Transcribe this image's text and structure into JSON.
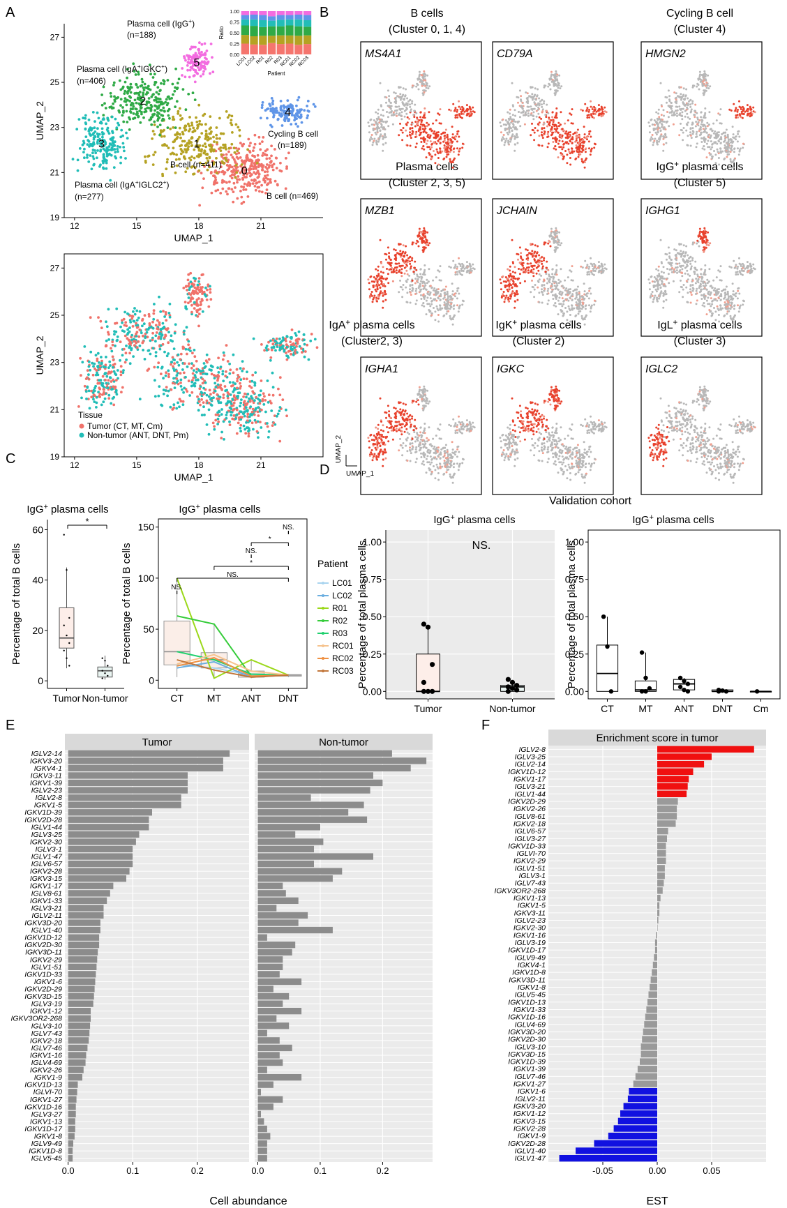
{
  "panel_letters": [
    "A",
    "B",
    "C",
    "D",
    "E",
    "F"
  ],
  "chart_data": [
    {
      "id": "A_top",
      "type": "scatter",
      "xlabel": "UMAP_1",
      "ylabel": "UMAP_2",
      "xticks": [
        12,
        15,
        18,
        21
      ],
      "yticks": [
        19,
        21,
        23,
        25,
        27
      ],
      "xlim": [
        11.5,
        24
      ],
      "ylim": [
        19,
        27.6
      ],
      "clusters": [
        {
          "id": "0",
          "color": "#f0726a",
          "label": "B cell (n=469)",
          "center": [
            20.2,
            21.1
          ],
          "spread": [
            1.3,
            0.9
          ]
        },
        {
          "id": "1",
          "color": "#b5a223",
          "label": "B cell (n=411)",
          "center": [
            17.9,
            22.3
          ],
          "spread": [
            1.6,
            1.0
          ]
        },
        {
          "id": "2",
          "color": "#2faa46",
          "label_lines": [
            "Plasma cell (IgA",
            "+",
            "IGKC",
            "+",
            ")"
          ],
          "label": "Plasma cell (IgA+IGKC+) (n=406)",
          "n_text": "(n=406)",
          "center": [
            15.3,
            24.2
          ],
          "spread": [
            1.4,
            0.9
          ]
        },
        {
          "id": "3",
          "color": "#21bdb7",
          "label": "Plasma cell (IgA+IGLC2+) (n=277)",
          "n_text": "(n=277)",
          "center": [
            13.3,
            22.3
          ],
          "spread": [
            0.8,
            0.9
          ]
        },
        {
          "id": "4",
          "color": "#5f95e8",
          "label": "Cycling B cell (n=189)",
          "n_text": "(n=189)",
          "center": [
            22.3,
            23.7
          ],
          "spread": [
            0.9,
            0.4
          ]
        },
        {
          "id": "5",
          "color": "#f36ce0",
          "label": "Plasma cell (IgG+) (n=188)",
          "n_text": "(n=188)",
          "center": [
            17.9,
            25.9
          ],
          "spread": [
            0.5,
            0.6
          ]
        }
      ],
      "inset": {
        "ylabel": "Ratio",
        "xlabel": "Patient",
        "yticks": [
          "0.00",
          "0.25",
          "0.50",
          "0.75",
          "1.00"
        ],
        "categories": [
          "LC01",
          "LC02",
          "R01",
          "R02",
          "R03",
          "RC01",
          "RC02",
          "RC03"
        ],
        "series": [
          {
            "color": "#f5756e",
            "values": [
              0.25,
              0.23,
              0.22,
              0.26,
              0.24,
              0.25,
              0.22,
              0.24
            ]
          },
          {
            "color": "#b5a223",
            "values": [
              0.2,
              0.19,
              0.21,
              0.17,
              0.2,
              0.19,
              0.21,
              0.2
            ]
          },
          {
            "color": "#2faa46",
            "values": [
              0.22,
              0.24,
              0.2,
              0.22,
              0.21,
              0.23,
              0.22,
              0.2
            ]
          },
          {
            "color": "#22bdb7",
            "values": [
              0.14,
              0.15,
              0.16,
              0.13,
              0.15,
              0.14,
              0.16,
              0.15
            ]
          },
          {
            "color": "#5f95e8",
            "values": [
              0.1,
              0.11,
              0.12,
              0.1,
              0.11,
              0.1,
              0.11,
              0.12
            ]
          },
          {
            "color": "#f36ce0",
            "values": [
              0.09,
              0.08,
              0.09,
              0.12,
              0.09,
              0.09,
              0.08,
              0.09
            ]
          }
        ]
      }
    },
    {
      "id": "A_bottom",
      "type": "scatter",
      "xlabel": "UMAP_1",
      "ylabel": "UMAP_2",
      "xticks": [
        12,
        15,
        18,
        21
      ],
      "yticks": [
        19,
        21,
        23,
        25,
        27
      ],
      "legend_title": "Tissue",
      "legend": [
        {
          "label": "Tumor (CT, MT, Cm)",
          "color": "#f0726a"
        },
        {
          "label": "Non-tumor (ANT, DNT, Pm)",
          "color": "#21bdb7"
        }
      ]
    },
    {
      "id": "B",
      "type": "heatmap",
      "headers": [
        {
          "line1": "B cells",
          "line2": "(Cluster 0, 1, 4)"
        },
        {
          "line1": "Cycling B cell",
          "line2": "(Cluster 4)"
        },
        {
          "line1": "Plasma cells",
          "line2": "(Cluster 2, 3, 5)"
        },
        {
          "line1": "IgG",
          "sup": "+",
          "rest": " plasma cells",
          "line2": "(Cluster 5)"
        },
        {
          "line1": "IgA",
          "sup": "+",
          "rest": " plasma cells",
          "line2": "(Cluster2, 3)"
        },
        {
          "line1": "IgK",
          "sup": "+",
          "rest": " plasma cells",
          "line2": "(Cluster 2)"
        },
        {
          "line1": "IgL",
          "sup": "+",
          "rest": " plasma cells",
          "line2": "(Cluster 3)"
        }
      ],
      "genes": [
        {
          "name": "MS4A1",
          "high": [
            0,
            1,
            4
          ]
        },
        {
          "name": "CD79A",
          "high": [
            0,
            1,
            4
          ]
        },
        {
          "name": "HMGN2",
          "high": [
            4
          ]
        },
        {
          "name": "MZB1",
          "high": [
            2,
            3,
            5
          ]
        },
        {
          "name": "JCHAIN",
          "high": [
            3,
            2
          ]
        },
        {
          "name": "IGHG1",
          "high": [
            5
          ]
        },
        {
          "name": "IGHA1",
          "high": [
            2,
            3
          ]
        },
        {
          "name": "IGKC",
          "high": [
            2,
            5
          ]
        },
        {
          "name": "IGLC2",
          "high": [
            3
          ]
        }
      ],
      "axis_x": "UMAP_1",
      "axis_y": "UMAP_2"
    },
    {
      "id": "C_left",
      "type": "box",
      "title_base": "IgG",
      "title_sup": "+",
      "title_rest": " plasma cells",
      "ylabel": "Percentage of total B cells",
      "categories": [
        "Tumor",
        "Non-tumor"
      ],
      "yticks": [
        0,
        20,
        40,
        60
      ],
      "ylim": [
        -3,
        64
      ],
      "boxes": [
        {
          "q1": 13,
          "median": 17,
          "q3": 29,
          "min": 5,
          "max": 45,
          "points": [
            58,
            44,
            25,
            22,
            18,
            15,
            12,
            9,
            6
          ],
          "fill": "#fdeee9"
        },
        {
          "q1": 1.5,
          "median": 4,
          "q3": 5.5,
          "min": 0.5,
          "max": 10,
          "points": [
            9,
            8,
            6,
            4,
            3,
            2,
            1
          ],
          "fill": "#e9f4f1"
        }
      ],
      "sig": [
        "*"
      ]
    },
    {
      "id": "C_right",
      "type": "box",
      "title_base": "IgG",
      "title_sup": "+",
      "title_rest": " plasma cells",
      "ylabel": "Percentage of total B cells",
      "categories": [
        "CT",
        "MT",
        "ANT",
        "DNT"
      ],
      "yticks": [
        0,
        50,
        100,
        150
      ],
      "ylim": [
        -8,
        158
      ],
      "boxes": [
        {
          "q1": 15,
          "median": 28,
          "q3": 58,
          "min": 3,
          "max": 100
        },
        {
          "q1": 12,
          "median": 20,
          "q3": 27,
          "min": 2,
          "max": 55
        },
        {
          "q1": 3,
          "median": 6,
          "q3": 9,
          "min": 2,
          "max": 20
        },
        {
          "q1": 4,
          "median": 5,
          "q3": 5.5,
          "min": 3,
          "max": 6
        }
      ],
      "legend_title": "Patient",
      "series": [
        {
          "name": "LC01",
          "color": "#a9d4ef",
          "values": [
            15,
            12,
            5,
            5
          ]
        },
        {
          "name": "LC02",
          "color": "#6aaee0",
          "values": [
            12,
            18,
            3,
            5
          ]
        },
        {
          "name": "R01",
          "color": "#9bd81a",
          "values": [
            100,
            2,
            20,
            5
          ]
        },
        {
          "name": "R02",
          "color": "#35cc3a",
          "values": [
            63,
            55,
            4,
            5
          ]
        },
        {
          "name": "R03",
          "color": "#1fd06e",
          "values": [
            28,
            20,
            6,
            5
          ]
        },
        {
          "name": "RC01",
          "color": "#f6c38e",
          "values": [
            16,
            25,
            9,
            5
          ]
        },
        {
          "name": "RC02",
          "color": "#ef9041",
          "values": [
            14,
            22,
            4,
            5
          ]
        },
        {
          "name": "RC03",
          "color": "#c2763a",
          "values": [
            20,
            10,
            3,
            5
          ]
        }
      ],
      "sig": [
        "NS.",
        "*",
        "NS.",
        "*",
        "NS.",
        "NS."
      ]
    },
    {
      "id": "D_left",
      "type": "box",
      "cohort_title": "Validation cohort",
      "title_base": "IgG",
      "title_sup": "+",
      "title_rest": " plasma cells",
      "ylabel": "Percentage of total plasma cells",
      "categories": [
        "Tumor",
        "Non-tumor"
      ],
      "yticks": [
        "0.00",
        "0.25",
        "0.50",
        "0.75",
        "1.00"
      ],
      "ylim": [
        -0.05,
        1.08
      ],
      "ns_label": "NS.",
      "boxes": [
        {
          "q1": 0.0,
          "median": 0.0,
          "q3": 0.25,
          "min": 0,
          "max": 0.44,
          "points": [
            0.45,
            0.43,
            0.18,
            0.06,
            0.0,
            0.0,
            0.0
          ],
          "fill": "#fdeee9"
        },
        {
          "q1": 0.0,
          "median": 0.03,
          "q3": 0.04,
          "min": 0,
          "max": 0.07,
          "points": [
            0.08,
            0.06,
            0.04,
            0.03,
            0.02,
            0.01,
            0.0
          ],
          "fill": "#e9f4f1"
        }
      ]
    },
    {
      "id": "D_right",
      "type": "box",
      "title_base": "IgG",
      "title_sup": "+",
      "title_rest": " plasma cells",
      "ylabel": "Percentage of total plasma cells",
      "categories": [
        "CT",
        "MT",
        "ANT",
        "DNT",
        "Cm"
      ],
      "yticks": [
        "0.00",
        "0.25",
        "0.50",
        "0.75",
        "1.00"
      ],
      "ylim": [
        -0.05,
        1.08
      ],
      "boxes": [
        {
          "q1": 0.0,
          "median": 0.12,
          "q3": 0.31,
          "min": 0,
          "max": 0.5,
          "points": [
            0.5,
            0.3,
            0.0
          ]
        },
        {
          "q1": 0.0,
          "median": 0.01,
          "q3": 0.07,
          "min": 0,
          "max": 0.26,
          "points": [
            0.26,
            0.09,
            0.02,
            0.0,
            0.0
          ]
        },
        {
          "q1": 0.01,
          "median": 0.05,
          "q3": 0.08,
          "min": 0,
          "max": 0.09,
          "points": [
            0.09,
            0.07,
            0.05,
            0.03,
            0.01,
            0.0
          ]
        },
        {
          "q1": 0.0,
          "median": 0.0,
          "q3": 0.01,
          "min": 0,
          "max": 0.01,
          "points": [
            0.01,
            0.005,
            0.0,
            0.0
          ]
        },
        {
          "q1": 0.0,
          "median": 0.0,
          "q3": 0.0,
          "min": 0,
          "max": 0,
          "points": [
            0.0
          ]
        }
      ]
    },
    {
      "id": "E",
      "type": "bar",
      "orientation": "horizontal",
      "facets": [
        "Tumor",
        "Non-tumor"
      ],
      "xlabel": "Cell abundance",
      "xticks": [
        "0.0",
        "0.1",
        "0.2"
      ],
      "xlim": [
        -0.005,
        0.28
      ],
      "categories": [
        "IGLV2-14",
        "IGKV3-20",
        "IGKV4-1",
        "IGKV3-11",
        "IGKV1-39",
        "IGLV2-23",
        "IGLV2-8",
        "IGKV1-5",
        "IGKV1D-39",
        "IGKV2D-28",
        "IGLV1-44",
        "IGLV3-25",
        "IGKV2-30",
        "IGLV3-1",
        "IGLV1-47",
        "IGLV6-57",
        "IGKV2-28",
        "IGKV3-15",
        "IGKV1-17",
        "IGLV8-61",
        "IGKV1-33",
        "IGLV3-21",
        "IGLV2-11",
        "IGKV3D-20",
        "IGLV1-40",
        "IGKV1D-12",
        "IGKV2D-30",
        "IGKV3D-11",
        "IGKV2-29",
        "IGLV1-51",
        "IGKV1D-33",
        "IGKV1-6",
        "IGKV2D-29",
        "IGKV3D-15",
        "IGLV3-19",
        "IGKV1-12",
        "IGKV3OR2-268",
        "IGLV3-10",
        "IGLV7-43",
        "IGKV2-18",
        "IGLV7-46",
        "IGKV1-16",
        "IGLV4-69",
        "IGKV2-26",
        "IGKV1-9",
        "IGKV1D-13",
        "IGLVI-70",
        "IGKV1-27",
        "IGKV1D-16",
        "IGLV3-27",
        "IGKV1-13",
        "IGKV1D-17",
        "IGKV1-8",
        "IGLV9-49",
        "IGKV1D-8",
        "IGLV5-45"
      ],
      "series": [
        {
          "name": "Tumor",
          "values": [
            0.25,
            0.24,
            0.24,
            0.185,
            0.185,
            0.185,
            0.175,
            0.175,
            0.13,
            0.125,
            0.125,
            0.11,
            0.105,
            0.1,
            0.1,
            0.1,
            0.095,
            0.09,
            0.07,
            0.065,
            0.06,
            0.055,
            0.055,
            0.05,
            0.05,
            0.048,
            0.048,
            0.046,
            0.045,
            0.044,
            0.043,
            0.042,
            0.041,
            0.04,
            0.039,
            0.035,
            0.035,
            0.034,
            0.033,
            0.032,
            0.03,
            0.028,
            0.027,
            0.024,
            0.022,
            0.015,
            0.014,
            0.013,
            0.012,
            0.012,
            0.011,
            0.011,
            0.01,
            0.008,
            0.007,
            0.007
          ]
        },
        {
          "name": "Non-tumor",
          "values": [
            0.215,
            0.27,
            0.245,
            0.185,
            0.2,
            0.18,
            0.085,
            0.17,
            0.145,
            0.175,
            0.1,
            0.06,
            0.105,
            0.09,
            0.185,
            0.09,
            0.135,
            0.12,
            0.04,
            0.045,
            0.065,
            0.03,
            0.08,
            0.065,
            0.12,
            0.015,
            0.06,
            0.055,
            0.04,
            0.04,
            0.035,
            0.07,
            0.025,
            0.05,
            0.04,
            0.07,
            0.03,
            0.05,
            0.015,
            0.035,
            0.055,
            0.035,
            0.04,
            0.015,
            0.07,
            0.025,
            0.005,
            0.04,
            0.025,
            0.005,
            0.01,
            0.015,
            0.02,
            0.015,
            0.015,
            0.015
          ]
        }
      ]
    },
    {
      "id": "F",
      "type": "bar",
      "orientation": "horizontal",
      "title": "Enrichment score in tumor",
      "xlabel": "EST",
      "xticks": [
        "-0.05",
        "0.00",
        "0.05"
      ],
      "xlim": [
        -0.1,
        0.1
      ],
      "categories": [
        "IGLV2-8",
        "IGLV3-25",
        "IGLV2-14",
        "IGKV1D-12",
        "IGKV1-17",
        "IGLV3-21",
        "IGLV1-44",
        "IGKV2D-29",
        "IGKV2-26",
        "IGLV8-61",
        "IGKV2-18",
        "IGLV6-57",
        "IGLV3-27",
        "IGKV1D-33",
        "IGLVI-70",
        "IGKV2-29",
        "IGLV1-51",
        "IGLV3-1",
        "IGLV7-43",
        "IGKV3OR2-268",
        "IGKV1-13",
        "IGKV1-5",
        "IGKV3-11",
        "IGLV2-23",
        "IGKV2-30",
        "IGKV1-16",
        "IGLV3-19",
        "IGKV1D-17",
        "IGLV9-49",
        "IGKV4-1",
        "IGKV1D-8",
        "IGKV3D-11",
        "IGKV1-8",
        "IGLV5-45",
        "IGKV1D-13",
        "IGKV1-33",
        "IGKV1D-16",
        "IGLV4-69",
        "IGKV3D-20",
        "IGKV2D-30",
        "IGLV3-10",
        "IGKV3D-15",
        "IGKV1D-39",
        "IGKV1-39",
        "IGLV7-46",
        "IGKV1-27",
        "IGKV1-6",
        "IGLV2-11",
        "IGKV3-20",
        "IGKV1-12",
        "IGKV3-15",
        "IGKV2-28",
        "IGKV1-9",
        "IGKV2D-28",
        "IGLV1-40",
        "IGLV1-47"
      ],
      "values": [
        0.089,
        0.05,
        0.043,
        0.033,
        0.029,
        0.028,
        0.027,
        0.019,
        0.018,
        0.018,
        0.017,
        0.01,
        0.009,
        0.008,
        0.008,
        0.008,
        0.007,
        0.007,
        0.006,
        0.005,
        0.003,
        0.002,
        0.002,
        0.001,
        0.0,
        -0.001,
        -0.002,
        -0.002,
        -0.003,
        -0.004,
        -0.005,
        -0.006,
        -0.007,
        -0.008,
        -0.009,
        -0.01,
        -0.011,
        -0.012,
        -0.013,
        -0.014,
        -0.015,
        -0.015,
        -0.016,
        -0.018,
        -0.02,
        -0.022,
        -0.026,
        -0.027,
        -0.031,
        -0.034,
        -0.036,
        -0.04,
        -0.045,
        -0.058,
        -0.075,
        -0.09
      ],
      "colors": {
        "positive": "#f01010",
        "neutral": "#9a9a9a",
        "negative": "#1111e0"
      },
      "n_positive": 7,
      "n_negative": 10
    }
  ]
}
